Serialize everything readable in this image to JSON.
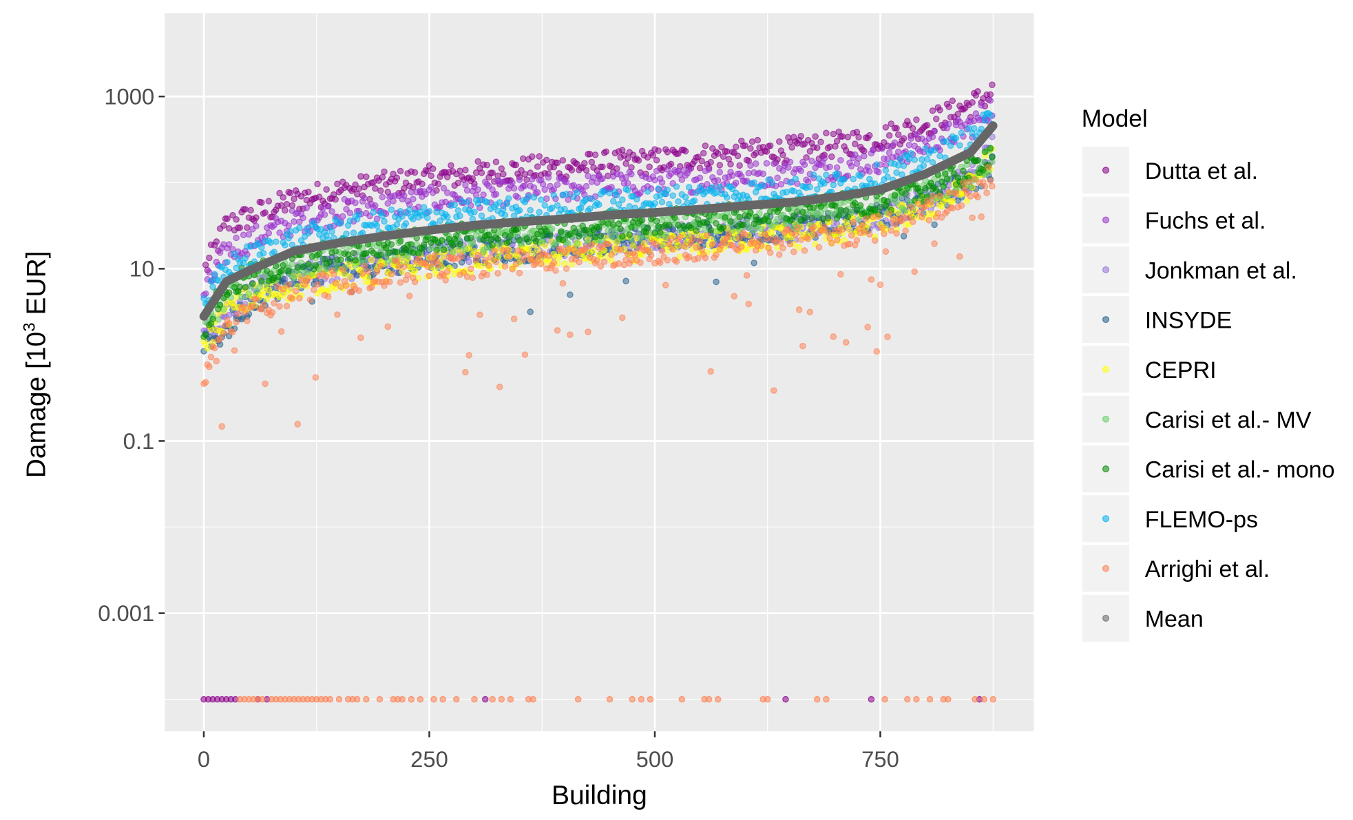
{
  "chart_data": {
    "type": "scatter",
    "xlabel": "Building",
    "ylabel_main": "Damage [10",
    "ylabel_sup": "3",
    "ylabel_end": " EUR]",
    "x_ticks": [
      0,
      250,
      500,
      750
    ],
    "x_tick_labels": [
      "0",
      "250",
      "500",
      "750"
    ],
    "xlim": [
      -43,
      920
    ],
    "y_scale": "log",
    "y_ticks": [
      1000,
      10,
      0.1,
      0.001
    ],
    "y_tick_labels": [
      "1000",
      "10",
      "0.1",
      "0.001"
    ],
    "ylim": [
      4e-05,
      9000
    ],
    "zero_plotted_at": 0.0001,
    "grid": true,
    "legend": {
      "title": "Model",
      "placement": "right"
    },
    "sample_buildings": [
      0,
      25,
      50,
      100,
      150,
      200,
      250,
      300,
      350,
      400,
      450,
      500,
      550,
      600,
      650,
      700,
      750,
      800,
      850,
      875
    ],
    "series": [
      {
        "name": "Dutta et al.",
        "color": "#8B008B",
        "values": [
          9,
          32,
          40,
          63,
          79,
          95,
          112,
          126,
          141,
          151,
          166,
          178,
          200,
          219,
          240,
          275,
          331,
          479,
          794,
          1122
        ],
        "zero_buildings": [
          0,
          5,
          10,
          15,
          20,
          25,
          30,
          35,
          60,
          70,
          312,
          645,
          740,
          860
        ]
      },
      {
        "name": "Fuchs et al.",
        "color": "#9A32CD",
        "values": [
          5,
          16,
          21,
          35,
          45,
          54,
          63,
          71,
          78,
          85,
          93,
          100,
          110,
          120,
          132,
          151,
          186,
          282,
          447,
          794
        ]
      },
      {
        "name": "Jonkman et al.",
        "color": "#9370DB",
        "values": [
          1.6,
          3.2,
          5,
          7.9,
          10,
          12,
          14,
          16,
          17,
          19,
          21,
          22,
          25,
          27,
          30,
          34,
          42,
          63,
          112,
          251
        ]
      },
      {
        "name": "INSYDE",
        "color": "#1F5F8B",
        "values": [
          1.2,
          2,
          4,
          8,
          10,
          12,
          14,
          16,
          17,
          19,
          21,
          22,
          25,
          27,
          30,
          34,
          40,
          60,
          100,
          150
        ]
      },
      {
        "name": "CEPRI",
        "color": "#FFFF00",
        "values": [
          1.4,
          3,
          4.5,
          6.3,
          8,
          9.5,
          11,
          12.6,
          14,
          15,
          16.5,
          18,
          20,
          22,
          24,
          27,
          33,
          50,
          90,
          220
        ]
      },
      {
        "name": "Carisi et al.- MV",
        "color": "#66CD66",
        "values": [
          2,
          5,
          7,
          11,
          14,
          17,
          20,
          22,
          25,
          27,
          30,
          32,
          35,
          38,
          42,
          48,
          56,
          79,
          126,
          200
        ]
      },
      {
        "name": "Carisi et al.- mono",
        "color": "#008B00",
        "values": [
          2.2,
          6,
          8,
          12,
          16,
          19,
          22,
          25,
          27,
          30,
          33,
          35,
          38,
          42,
          46,
          52,
          60,
          85,
          140,
          240
        ]
      },
      {
        "name": "FLEMO-ps",
        "color": "#00B2EE",
        "values": [
          4,
          10,
          13.5,
          22,
          28,
          34,
          40,
          45,
          49,
          54,
          59,
          63,
          69,
          76,
          83,
          95,
          117,
          178,
          316,
          562
        ]
      },
      {
        "name": "Arrighi et al.",
        "color": "#FF7F50",
        "values": [
          0.6,
          2,
          3,
          5.6,
          7,
          8.5,
          10,
          11,
          12.5,
          13.5,
          15,
          16,
          17.5,
          19,
          21,
          24,
          30,
          45,
          80,
          120
        ],
        "zero_buildings": [
          40,
          45,
          50,
          55,
          60,
          65,
          75,
          80,
          85,
          90,
          95,
          100,
          105,
          110,
          115,
          120,
          125,
          130,
          135,
          140,
          150,
          160,
          165,
          170,
          180,
          195,
          210,
          215,
          220,
          230,
          240,
          255,
          265,
          280,
          300,
          320,
          330,
          340,
          360,
          365,
          415,
          450,
          475,
          485,
          495,
          530,
          555,
          560,
          570,
          620,
          625,
          680,
          690,
          755,
          780,
          790,
          805,
          820,
          825,
          855,
          865,
          875
        ]
      },
      {
        "name": "Mean",
        "color": "#666666",
        "values": [
          2.8,
          7.1,
          9.5,
          16,
          20,
          24,
          28,
          32,
          35,
          38,
          42,
          45,
          49,
          54,
          59,
          68,
          83,
          126,
          224,
          457
        ]
      }
    ]
  }
}
